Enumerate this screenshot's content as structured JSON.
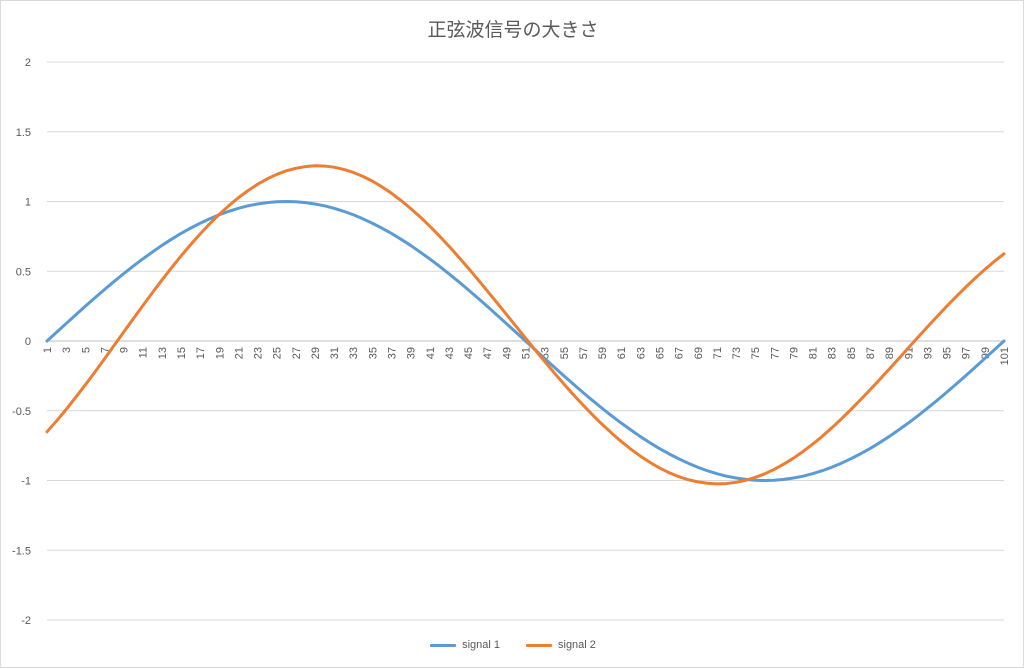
{
  "chart_data": {
    "type": "line",
    "title": "正弦波信号の大きさ",
    "xlabel": "",
    "ylabel": "",
    "ylim": [
      -2,
      2
    ],
    "yticks": [
      "2",
      "1.5",
      "1",
      "0.5",
      "0",
      "-0.5",
      "-1",
      "-1.5",
      "-2"
    ],
    "x_first": 1,
    "x_last": 101,
    "xtick_step": 2,
    "grid": true,
    "legend_position": "bottom",
    "series": [
      {
        "name": "signal 1",
        "color": "#5b9bd5",
        "values": [
          0,
          0.063,
          0.125,
          0.187,
          0.249,
          0.309,
          0.368,
          0.426,
          0.482,
          0.536,
          0.588,
          0.637,
          0.685,
          0.729,
          0.771,
          0.809,
          0.844,
          0.876,
          0.905,
          0.93,
          0.951,
          0.969,
          0.982,
          0.992,
          0.998,
          1.0,
          0.998,
          0.992,
          0.982,
          0.969,
          0.951,
          0.93,
          0.905,
          0.876,
          0.844,
          0.809,
          0.771,
          0.729,
          0.685,
          0.637,
          0.588,
          0.536,
          0.482,
          0.426,
          0.368,
          0.309,
          0.249,
          0.187,
          0.125,
          0.063,
          0,
          -0.063,
          -0.125,
          -0.187,
          -0.249,
          -0.309,
          -0.368,
          -0.426,
          -0.482,
          -0.536,
          -0.588,
          -0.637,
          -0.685,
          -0.729,
          -0.771,
          -0.809,
          -0.844,
          -0.876,
          -0.905,
          -0.93,
          -0.951,
          -0.969,
          -0.982,
          -0.992,
          -0.998,
          -1.0,
          -0.998,
          -0.992,
          -0.982,
          -0.969,
          -0.951,
          -0.93,
          -0.905,
          -0.876,
          -0.844,
          -0.809,
          -0.771,
          -0.729,
          -0.685,
          -0.637,
          -0.588,
          -0.536,
          -0.482,
          -0.426,
          -0.368,
          -0.309,
          -0.249,
          -0.187,
          -0.125,
          -0.063,
          0
        ]
      },
      {
        "name": "signal 2",
        "color": "#ed7d31",
        "values": [
          -0.651,
          -0.573,
          -0.491,
          -0.404,
          -0.315,
          -0.223,
          -0.129,
          -0.033,
          0.063,
          0.158,
          0.252,
          0.345,
          0.436,
          0.524,
          0.609,
          0.69,
          0.767,
          0.84,
          0.908,
          0.97,
          1.027,
          1.078,
          1.123,
          1.162,
          1.194,
          1.22,
          1.238,
          1.25,
          1.256,
          1.254,
          1.246,
          1.23,
          1.209,
          1.18,
          1.146,
          1.105,
          1.059,
          1.007,
          0.95,
          0.889,
          0.823,
          0.753,
          0.68,
          0.603,
          0.524,
          0.443,
          0.36,
          0.276,
          0.191,
          0.106,
          0.021,
          -0.063,
          -0.146,
          -0.228,
          -0.307,
          -0.384,
          -0.458,
          -0.529,
          -0.597,
          -0.66,
          -0.72,
          -0.775,
          -0.825,
          -0.87,
          -0.91,
          -0.944,
          -0.972,
          -0.994,
          -1.01,
          -1.02,
          -1.024,
          -1.022,
          -1.013,
          -0.999,
          -0.978,
          -0.952,
          -0.92,
          -0.882,
          -0.84,
          -0.792,
          -0.74,
          -0.684,
          -0.623,
          -0.559,
          -0.492,
          -0.422,
          -0.35,
          -0.277,
          -0.202,
          -0.126,
          -0.05,
          0.026,
          0.101,
          0.175,
          0.248,
          0.318,
          0.386,
          0.451,
          0.513,
          0.571,
          0.625
        ]
      }
    ]
  }
}
